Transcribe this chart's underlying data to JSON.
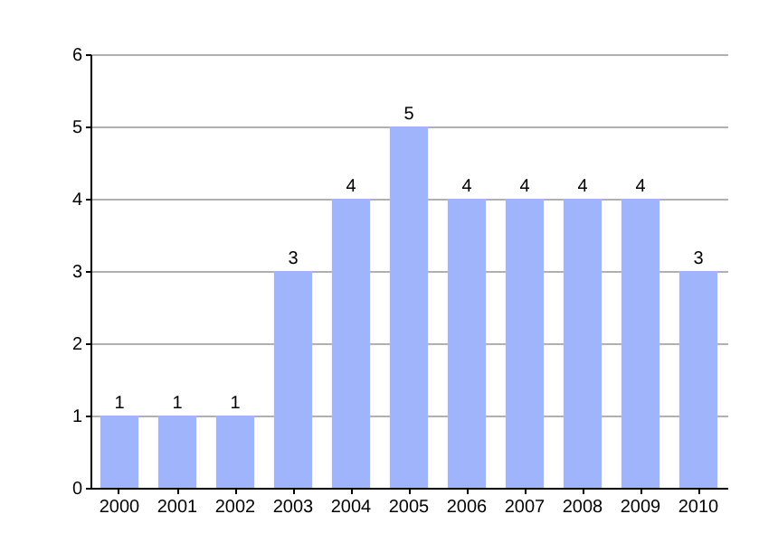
{
  "chart_data": {
    "type": "bar",
    "categories": [
      "2000",
      "2001",
      "2002",
      "2003",
      "2004",
      "2005",
      "2006",
      "2007",
      "2008",
      "2009",
      "2010"
    ],
    "values": [
      1,
      1,
      1,
      3,
      4,
      5,
      4,
      4,
      4,
      4,
      3
    ],
    "color": "#a0b4fc",
    "ylim": [
      0,
      6
    ],
    "yticks": [
      0,
      1,
      2,
      3,
      4,
      5,
      6
    ],
    "grid": "y",
    "data_labels": true
  }
}
